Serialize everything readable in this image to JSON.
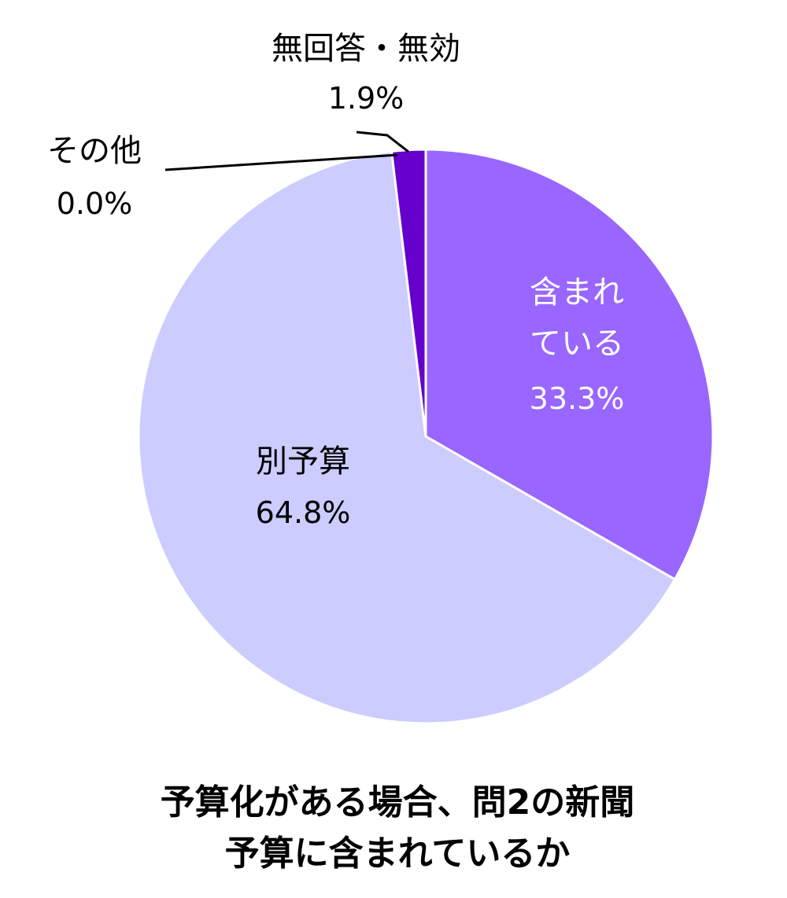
{
  "chart_data": {
    "type": "pie",
    "title_lines": [
      "予算化がある場合、問2の新聞",
      "予算に含まれているか"
    ],
    "start_angle_deg": 0,
    "direction": "clockwise",
    "slices": [
      {
        "label_lines": [
          "含まれ",
          "ている"
        ],
        "value": 33.3,
        "value_label": "33.3%",
        "color": "#9966FF",
        "text_color": "#ffffff"
      },
      {
        "label_lines": [
          "別予算"
        ],
        "value": 64.8,
        "value_label": "64.8%",
        "color": "#CCCCFF",
        "text_color": "#000000"
      },
      {
        "label_lines": [
          "その他"
        ],
        "value": 0.0,
        "value_label": "0.0%",
        "color": "#7B2FBE",
        "text_color": "#000000"
      },
      {
        "label_lines": [
          "無回答・無効"
        ],
        "value": 1.9,
        "value_label": "1.9%",
        "color": "#6600CC",
        "text_color": "#000000"
      }
    ]
  }
}
